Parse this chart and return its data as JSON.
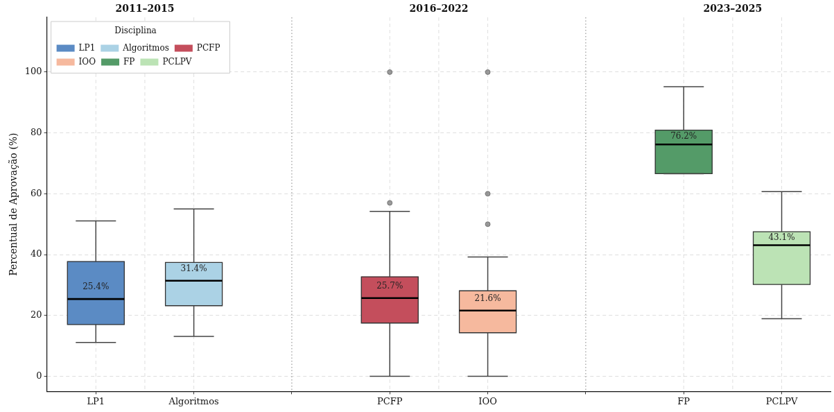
{
  "chart_data": {
    "type": "box",
    "ylabel": "Percentual de Aprovação (%)",
    "legend_title": "Disciplina",
    "legend": "top left",
    "grid": true,
    "categories": [
      "LP1",
      "Algoritmos",
      null,
      "PCFP",
      "IOO",
      null,
      "FP",
      "PCLPV"
    ],
    "series": [
      {
        "name": "LP1",
        "color": "#5b8bc4",
        "boxes": [
          {
            "low": 11.1,
            "q1": 17.0,
            "median": 25.4,
            "q3": 37.7,
            "high": 51.1
          },
          null,
          null,
          null,
          null,
          null,
          null,
          null
        ]
      },
      {
        "name": "Algoritmos",
        "color": "#abd2e5",
        "boxes": [
          null,
          {
            "low": 13.1,
            "q1": 23.2,
            "median": 31.4,
            "q3": 37.4,
            "high": 55.0
          },
          null,
          null,
          null,
          null,
          null,
          null
        ]
      },
      {
        "name": "PCFP",
        "color": "#c44e5c",
        "boxes": [
          null,
          null,
          null,
          {
            "low": 0,
            "q1": 17.5,
            "median": 25.7,
            "q3": 32.7,
            "high": 54.2,
            "outliers": [
              57,
              100
            ]
          },
          null,
          null,
          null,
          null
        ]
      },
      {
        "name": "IOO",
        "color": "#f6b99e",
        "boxes": [
          null,
          null,
          null,
          null,
          {
            "low": 0,
            "q1": 14.3,
            "median": 21.6,
            "q3": 28.1,
            "high": 39.2,
            "outliers": [
              50,
              60,
              100
            ]
          },
          null,
          null,
          null
        ]
      },
      {
        "name": "FP",
        "color": "#549b68",
        "boxes": [
          null,
          null,
          null,
          null,
          null,
          null,
          {
            "low": 66.6,
            "q1": 66.6,
            "median": 76.2,
            "q3": 80.9,
            "high": 95.2
          },
          null
        ]
      },
      {
        "name": "PCLPV",
        "color": "#bce3b5",
        "boxes": [
          null,
          null,
          null,
          null,
          null,
          null,
          null,
          {
            "low": 18.9,
            "q1": 30.2,
            "median": 43.1,
            "q3": 47.5,
            "high": 60.7
          }
        ]
      }
    ],
    "value_labels": [
      "25.4%",
      "31.4%",
      null,
      "25.7%",
      "21.6%",
      null,
      "76.2%",
      "43.1%"
    ],
    "annotations": [
      "2011–2015",
      "2016–2022",
      "2023–2025"
    ],
    "ylim": [
      -5,
      118
    ],
    "yticks": [
      0,
      20,
      40,
      60,
      80,
      100
    ]
  }
}
